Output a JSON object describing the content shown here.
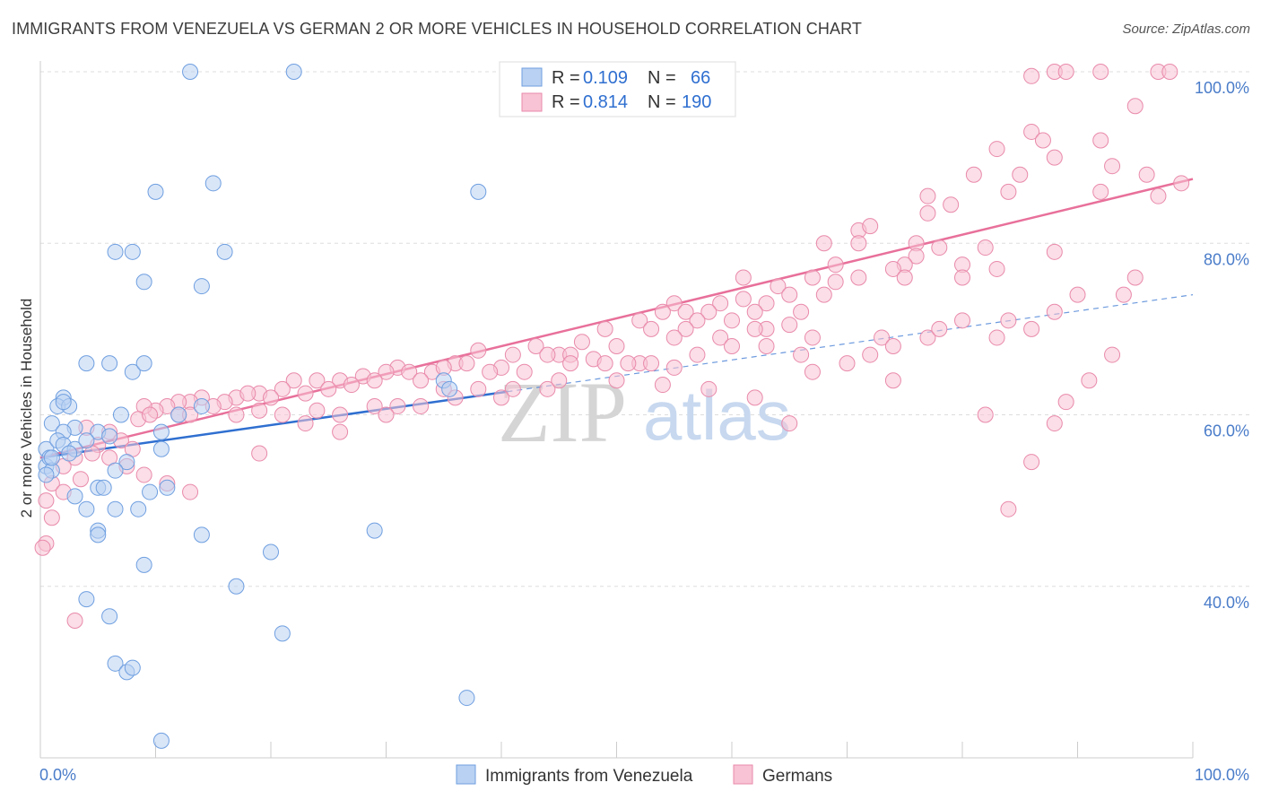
{
  "title": "IMMIGRANTS FROM VENEZUELA VS GERMAN 2 OR MORE VEHICLES IN HOUSEHOLD CORRELATION CHART",
  "source": "Source: ZipAtlas.com",
  "watermark": {
    "zip": "ZIP",
    "atlas": "atlas"
  },
  "colors": {
    "blue_fill": "#b9d1f2",
    "blue_stroke": "#6f9fe0",
    "blue_line": "#2f6fd0",
    "pink_fill": "#f8c3d4",
    "pink_stroke": "#e98aab",
    "pink_line": "#e8709a",
    "tick_text": "#4a7cc9",
    "grid": "#dddddd"
  },
  "legend": {
    "rows": [
      {
        "r_label": "R =",
        "r_value": "0.109",
        "n_label": "N =",
        "n_value": "66"
      },
      {
        "r_label": "R =",
        "r_value": "0.814",
        "n_label": "N =",
        "n_value": "190"
      }
    ]
  },
  "bottom_legend": [
    "Immigrants from Venezuela",
    "Germans"
  ],
  "chart_data": {
    "type": "scatter",
    "title": "IMMIGRANTS FROM VENEZUELA VS GERMAN 2 OR MORE VEHICLES IN HOUSEHOLD CORRELATION CHART",
    "xlabel": "",
    "ylabel": "2 or more Vehicles in Household",
    "x_tick_labels": [
      "0.0%",
      "100.0%"
    ],
    "y_tick_labels": [
      "40.0%",
      "60.0%",
      "80.0%",
      "100.0%"
    ],
    "y_ticks": [
      40,
      60,
      80,
      100
    ],
    "xlim": [
      0,
      100
    ],
    "ylim": [
      20,
      100
    ],
    "grid": true,
    "legend_position": "top-center",
    "series": [
      {
        "name": "Immigrants from Venezuela",
        "r": 0.109,
        "n": 66,
        "trend": {
          "x0": 0,
          "y0": 55,
          "x1": 100,
          "y1": 74,
          "solid_until": 40.5
        },
        "points": [
          [
            13,
            100
          ],
          [
            22,
            100
          ],
          [
            10,
            86
          ],
          [
            15,
            87
          ],
          [
            38,
            86
          ],
          [
            6.5,
            79
          ],
          [
            8,
            79
          ],
          [
            16,
            79
          ],
          [
            9,
            75.5
          ],
          [
            14,
            75
          ],
          [
            4,
            66
          ],
          [
            6,
            66
          ],
          [
            8,
            65
          ],
          [
            9,
            66
          ],
          [
            2,
            62
          ],
          [
            1.5,
            61
          ],
          [
            2.5,
            61
          ],
          [
            35,
            64
          ],
          [
            35.5,
            63
          ],
          [
            14,
            61
          ],
          [
            7,
            60
          ],
          [
            5,
            58
          ],
          [
            1,
            59
          ],
          [
            3,
            58.5
          ],
          [
            2,
            58
          ],
          [
            0.5,
            56
          ],
          [
            1.5,
            57
          ],
          [
            2,
            56.5
          ],
          [
            3,
            56
          ],
          [
            4,
            57
          ],
          [
            6,
            57.5
          ],
          [
            10.5,
            58
          ],
          [
            0.5,
            54
          ],
          [
            0.8,
            55
          ],
          [
            1,
            53.5
          ],
          [
            2.5,
            55.5
          ],
          [
            7.5,
            54.5
          ],
          [
            10.5,
            56
          ],
          [
            6.5,
            53.5
          ],
          [
            5,
            51.5
          ],
          [
            5.5,
            51.5
          ],
          [
            11,
            51.5
          ],
          [
            9.5,
            51
          ],
          [
            3,
            50.5
          ],
          [
            4,
            49
          ],
          [
            6.5,
            49
          ],
          [
            8.5,
            49
          ],
          [
            5,
            46.5
          ],
          [
            5,
            46
          ],
          [
            14,
            46
          ],
          [
            29,
            46.5
          ],
          [
            20,
            44
          ],
          [
            9,
            42.5
          ],
          [
            17,
            40
          ],
          [
            4,
            38.5
          ],
          [
            6,
            36.5
          ],
          [
            21,
            34.5
          ],
          [
            6.5,
            31
          ],
          [
            7.5,
            30
          ],
          [
            8,
            30.5
          ],
          [
            37,
            27
          ],
          [
            10.5,
            22
          ],
          [
            0.5,
            53
          ],
          [
            12,
            60
          ],
          [
            2,
            61.5
          ],
          [
            1,
            55
          ]
        ]
      },
      {
        "name": "Germans",
        "r": 0.814,
        "n": 190,
        "trend": {
          "x0": 0,
          "y0": 55,
          "x1": 100,
          "y1": 87.5
        },
        "points": [
          [
            88,
            100
          ],
          [
            89,
            100
          ],
          [
            92,
            100
          ],
          [
            97,
            100
          ],
          [
            98,
            100
          ],
          [
            86,
            99.5
          ],
          [
            95,
            96
          ],
          [
            86,
            93
          ],
          [
            87,
            92
          ],
          [
            92,
            92
          ],
          [
            83,
            91
          ],
          [
            88,
            90
          ],
          [
            93,
            89
          ],
          [
            81,
            88
          ],
          [
            85,
            88
          ],
          [
            96,
            88
          ],
          [
            99,
            87
          ],
          [
            84,
            86
          ],
          [
            92,
            86
          ],
          [
            97,
            85.5
          ],
          [
            77,
            85.5
          ],
          [
            79,
            84.5
          ],
          [
            77,
            83.5
          ],
          [
            71,
            81.5
          ],
          [
            72,
            82
          ],
          [
            68,
            80
          ],
          [
            71,
            80
          ],
          [
            76,
            80
          ],
          [
            78,
            79.5
          ],
          [
            82,
            79.5
          ],
          [
            88,
            79
          ],
          [
            76,
            78.5
          ],
          [
            75,
            77.5
          ],
          [
            80,
            77.5
          ],
          [
            69,
            77.5
          ],
          [
            74,
            77
          ],
          [
            83,
            77
          ],
          [
            71,
            76
          ],
          [
            67,
            76
          ],
          [
            75,
            76
          ],
          [
            80,
            76
          ],
          [
            61,
            76
          ],
          [
            69,
            75.5
          ],
          [
            64,
            75
          ],
          [
            65,
            74
          ],
          [
            68,
            74
          ],
          [
            61,
            73.5
          ],
          [
            59,
            73
          ],
          [
            63,
            73
          ],
          [
            55,
            73
          ],
          [
            58,
            72
          ],
          [
            62,
            72
          ],
          [
            56,
            72
          ],
          [
            52,
            71
          ],
          [
            54,
            72
          ],
          [
            57,
            71
          ],
          [
            60,
            71
          ],
          [
            49,
            70
          ],
          [
            53,
            70
          ],
          [
            56,
            70
          ],
          [
            63,
            70
          ],
          [
            66,
            72
          ],
          [
            67,
            69
          ],
          [
            73,
            69
          ],
          [
            77,
            69
          ],
          [
            83,
            69
          ],
          [
            59,
            69
          ],
          [
            47,
            68.5
          ],
          [
            55,
            69
          ],
          [
            62,
            70
          ],
          [
            65,
            70.5
          ],
          [
            50,
            68
          ],
          [
            45,
            67
          ],
          [
            43,
            68
          ],
          [
            44,
            67
          ],
          [
            48,
            66.5
          ],
          [
            52,
            66
          ],
          [
            38,
            67.5
          ],
          [
            41,
            67
          ],
          [
            46,
            67
          ],
          [
            36,
            66
          ],
          [
            40,
            65.5
          ],
          [
            34,
            65
          ],
          [
            35,
            65.5
          ],
          [
            31,
            65.5
          ],
          [
            32,
            65
          ],
          [
            30,
            65
          ],
          [
            28,
            64.5
          ],
          [
            26,
            64
          ],
          [
            29,
            64
          ],
          [
            33,
            64
          ],
          [
            37,
            66
          ],
          [
            39,
            65
          ],
          [
            42,
            65
          ],
          [
            22,
            64
          ],
          [
            24,
            64
          ],
          [
            27,
            63.5
          ],
          [
            25,
            63
          ],
          [
            23,
            62.5
          ],
          [
            21,
            63
          ],
          [
            19,
            62.5
          ],
          [
            20,
            62
          ],
          [
            17,
            62
          ],
          [
            18,
            62.5
          ],
          [
            16,
            61.5
          ],
          [
            14,
            62
          ],
          [
            15,
            61
          ],
          [
            13,
            61.5
          ],
          [
            12,
            61.5
          ],
          [
            11,
            61
          ],
          [
            10,
            60.5
          ],
          [
            9,
            61
          ],
          [
            8.5,
            59.5
          ],
          [
            9.5,
            60
          ],
          [
            12,
            60
          ],
          [
            13,
            60
          ],
          [
            17,
            60
          ],
          [
            19,
            60.5
          ],
          [
            21,
            60
          ],
          [
            24,
            60.5
          ],
          [
            26,
            60
          ],
          [
            29,
            61
          ],
          [
            31,
            61
          ],
          [
            33,
            61
          ],
          [
            35,
            63
          ],
          [
            38,
            63
          ],
          [
            41,
            63
          ],
          [
            44,
            63
          ],
          [
            46,
            66
          ],
          [
            49,
            66
          ],
          [
            51,
            66
          ],
          [
            53,
            66
          ],
          [
            55,
            65.5
          ],
          [
            57,
            67
          ],
          [
            60,
            68
          ],
          [
            63,
            68
          ],
          [
            66,
            67
          ],
          [
            70,
            66
          ],
          [
            72,
            67
          ],
          [
            74,
            68
          ],
          [
            78,
            70
          ],
          [
            80,
            71
          ],
          [
            84,
            71
          ],
          [
            86,
            70
          ],
          [
            88,
            72
          ],
          [
            90,
            74
          ],
          [
            94,
            74
          ],
          [
            95,
            76
          ],
          [
            4,
            58.5
          ],
          [
            6,
            58
          ],
          [
            7,
            57
          ],
          [
            5,
            56.5
          ],
          [
            8,
            56
          ],
          [
            3,
            55
          ],
          [
            4.5,
            55.5
          ],
          [
            6,
            55
          ],
          [
            7.5,
            54
          ],
          [
            2,
            54
          ],
          [
            1,
            52
          ],
          [
            3.5,
            52.5
          ],
          [
            9,
            53
          ],
          [
            11,
            52
          ],
          [
            13,
            51
          ],
          [
            2,
            51
          ],
          [
            0.5,
            50
          ],
          [
            1,
            48
          ],
          [
            0.5,
            45
          ],
          [
            0.2,
            44.5
          ],
          [
            3,
            36
          ],
          [
            65,
            59
          ],
          [
            74,
            64
          ],
          [
            82,
            60
          ],
          [
            89,
            61.5
          ],
          [
            91,
            64
          ],
          [
            93,
            67
          ],
          [
            88,
            59
          ],
          [
            86,
            54.5
          ],
          [
            84,
            49
          ],
          [
            19,
            55.5
          ],
          [
            23,
            59
          ],
          [
            26,
            58
          ],
          [
            30,
            60
          ],
          [
            36,
            62
          ],
          [
            40,
            62
          ],
          [
            45,
            64
          ],
          [
            50,
            64
          ],
          [
            54,
            63.5
          ],
          [
            58,
            63
          ],
          [
            62,
            62
          ],
          [
            67,
            65
          ]
        ]
      }
    ]
  }
}
